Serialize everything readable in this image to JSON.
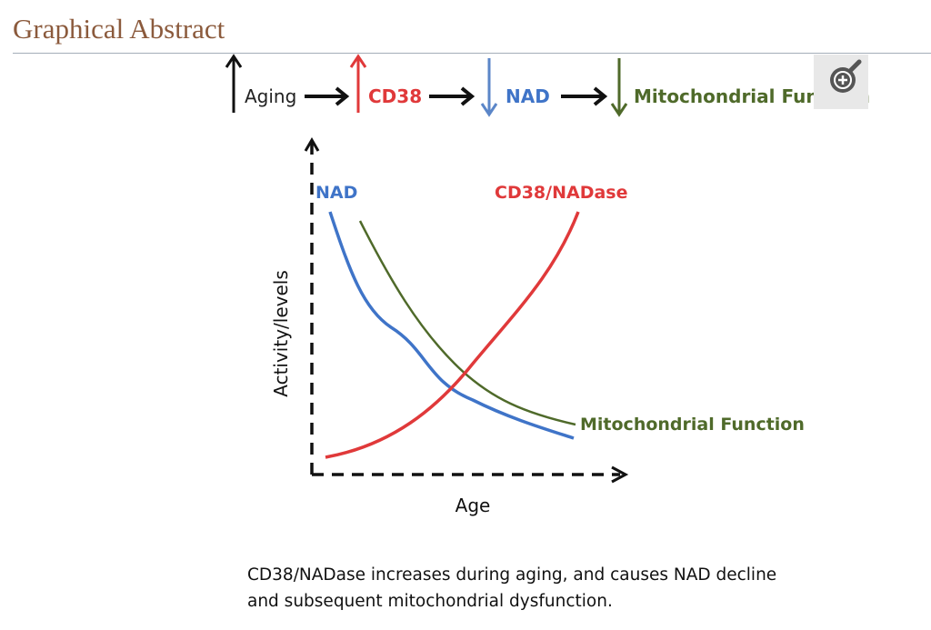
{
  "header": {
    "title": "Graphical Abstract"
  },
  "flow": {
    "aging": "Aging",
    "cd38": "CD38",
    "nad": "NAD",
    "mito": "Mitochondrial Function"
  },
  "diagram": {
    "y_label": "Activity/levels",
    "x_label": "Age",
    "nad_label": "NAD",
    "cd38_label": "CD38/NADase",
    "mito_label": "Mitochondrial Function",
    "colors": {
      "nad": "#3f74c8",
      "cd38": "#e0393a",
      "mito": "#4f6a2a",
      "axis": "#111111"
    }
  },
  "caption": {
    "line1": "CD38/NADase increases during aging, and causes NAD decline",
    "line2": "and subsequent mitochondrial dysfunction."
  },
  "zoom_button": {
    "icon": "zoom-in-icon"
  }
}
